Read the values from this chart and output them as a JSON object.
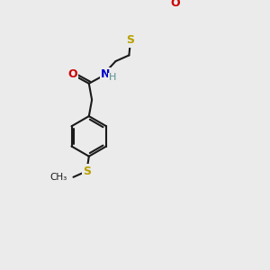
{
  "bg_color": "#ebebeb",
  "bond_color": "#1a1a1a",
  "bond_width": 1.5,
  "S_color": "#b8a000",
  "O_color": "#cc0000",
  "N_color": "#0000cc",
  "H_color": "#5a9090",
  "font_size_atom": 9,
  "figsize": [
    3.0,
    3.0
  ],
  "dpi": 100,
  "xlim": [
    0,
    300
  ],
  "ylim": [
    0,
    300
  ]
}
